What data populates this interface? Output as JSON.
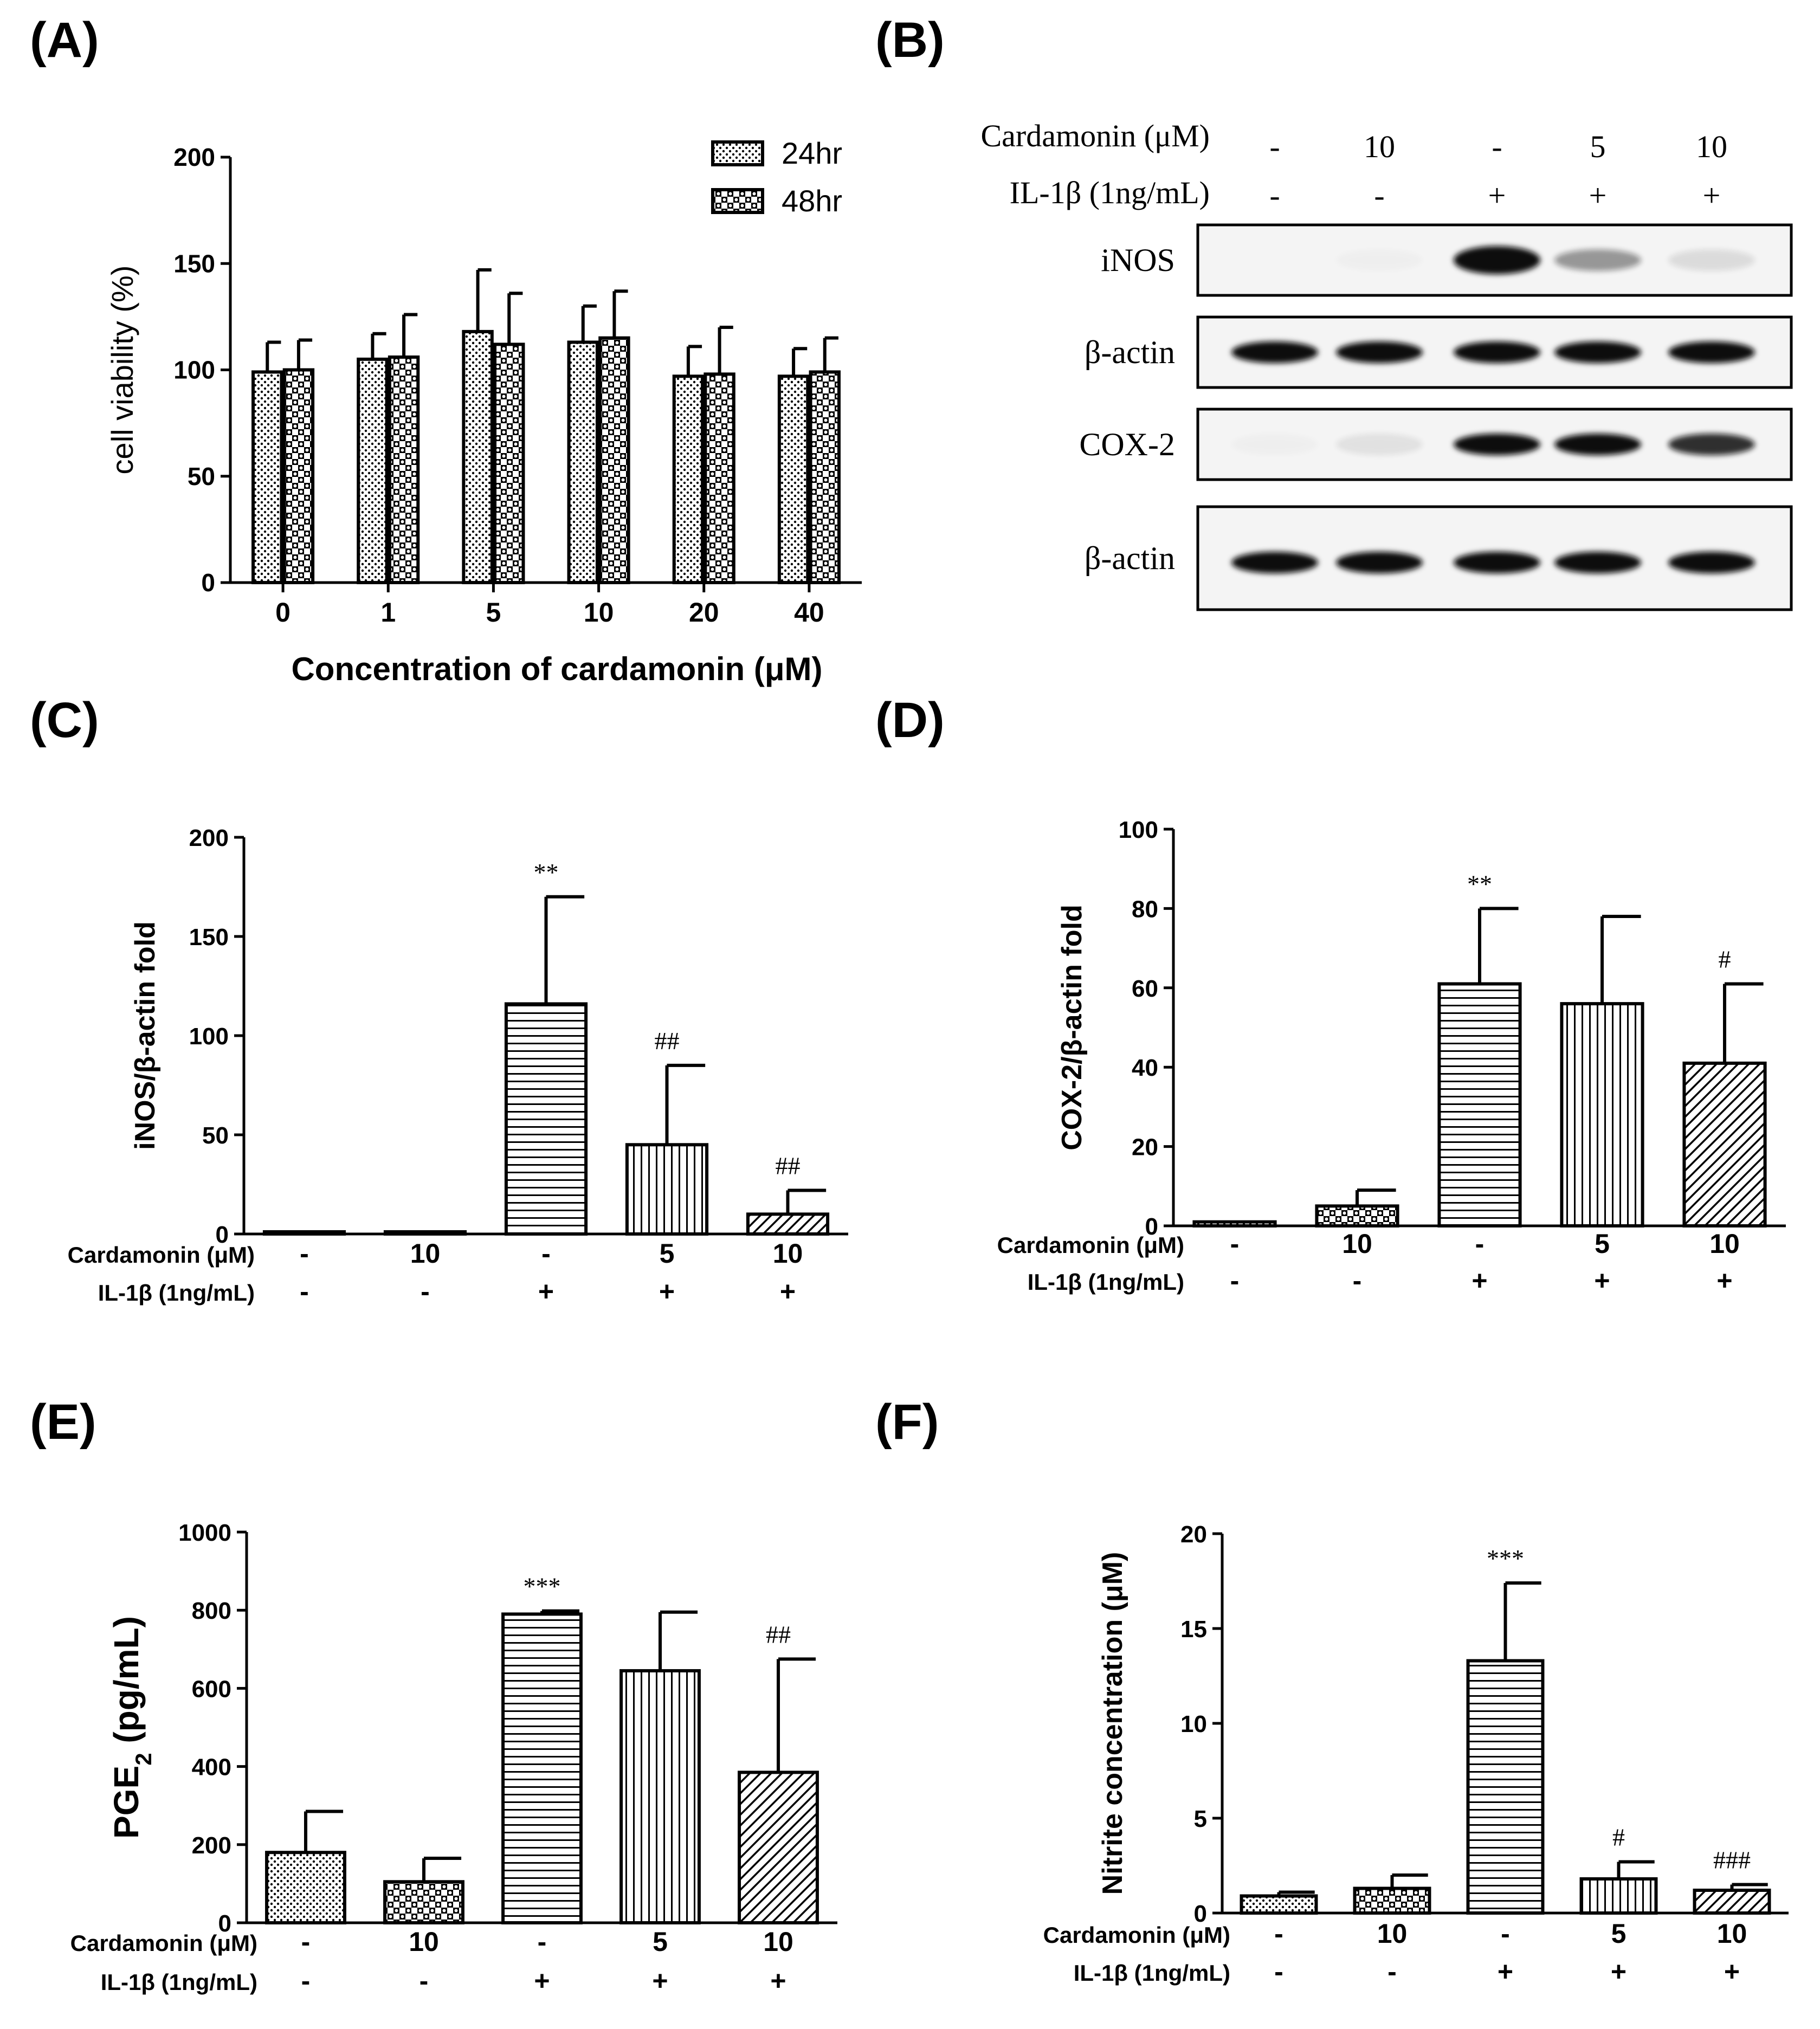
{
  "colors": {
    "ink": "#000000",
    "bar_fill": "#ffffff",
    "blot_bg": "#f4f4f4",
    "band": "#111111"
  },
  "chart_data": [
    {
      "panel": "A",
      "label": "(A)",
      "type": "bar",
      "xlabel": "Concentration of cardamonin (μM)",
      "ylabel": "cell viability (%)",
      "ylim": [
        0,
        200
      ],
      "yticks": [
        "0",
        "50",
        "100",
        "150",
        "200"
      ],
      "categories": [
        "0",
        "1",
        "5",
        "10",
        "20",
        "40"
      ],
      "series": [
        {
          "name": "24hr",
          "pattern": "dots",
          "values": [
            99,
            105,
            118,
            113,
            97,
            97
          ],
          "errors": [
            14,
            12,
            29,
            17,
            14,
            13
          ]
        },
        {
          "name": "48hr",
          "pattern": "checker",
          "values": [
            100,
            106,
            112,
            115,
            98,
            99
          ],
          "errors": [
            14,
            20,
            24,
            22,
            22,
            16
          ]
        }
      ],
      "legend_position": "top-right"
    },
    {
      "panel": "C",
      "label": "(C)",
      "type": "bar",
      "ylabel": "iNOS/β-actin fold",
      "ylim": [
        0,
        200
      ],
      "yticks": [
        "0",
        "50",
        "100",
        "150",
        "200"
      ],
      "row_labels": [
        "Cardamonin (μM)",
        "IL-1β (1ng/mL)"
      ],
      "cardamonin": [
        "-",
        "10",
        "-",
        "5",
        "10"
      ],
      "il1b": [
        "-",
        "-",
        "+",
        "+",
        "+"
      ],
      "patterns": [
        "dots",
        "checker",
        "hlines",
        "vlines",
        "diag"
      ],
      "values": [
        1,
        1,
        116,
        45,
        10
      ],
      "errors": [
        0,
        0,
        54,
        40,
        12
      ],
      "annotations": [
        "",
        "",
        "**",
        "##",
        "##"
      ]
    },
    {
      "panel": "D",
      "label": "(D)",
      "type": "bar",
      "ylabel": "COX-2/β-actin fold",
      "ylim": [
        0,
        100
      ],
      "yticks": [
        "0",
        "20",
        "40",
        "60",
        "80",
        "100"
      ],
      "row_labels": [
        "Cardamonin (μM)",
        "IL-1β (1ng/mL)"
      ],
      "cardamonin": [
        "-",
        "10",
        "-",
        "5",
        "10"
      ],
      "il1b": [
        "-",
        "-",
        "+",
        "+",
        "+"
      ],
      "patterns": [
        "dots",
        "checker",
        "hlines",
        "vlines",
        "diag"
      ],
      "values": [
        1,
        5,
        61,
        56,
        41
      ],
      "errors": [
        0,
        4,
        19,
        22,
        20
      ],
      "annotations": [
        "",
        "",
        "**",
        "",
        "#"
      ]
    },
    {
      "panel": "E",
      "label": "(E)",
      "type": "bar",
      "ylabel": "PGE",
      "ylabel_sub": "2",
      "ylabel_unit": " (pg/mL)",
      "ylim": [
        0,
        1000
      ],
      "yticks": [
        "0",
        "200",
        "400",
        "600",
        "800",
        "1000"
      ],
      "row_labels": [
        "Cardamonin (μM)",
        "IL-1β (1ng/mL)"
      ],
      "cardamonin": [
        "-",
        "10",
        "-",
        "5",
        "10"
      ],
      "il1b": [
        "-",
        "-",
        "+",
        "+",
        "+"
      ],
      "patterns": [
        "dots",
        "checker",
        "hlines",
        "vlines",
        "diag"
      ],
      "values": [
        180,
        105,
        790,
        645,
        385
      ],
      "errors": [
        105,
        60,
        8,
        150,
        290
      ],
      "annotations": [
        "",
        "",
        "***",
        "",
        "##"
      ]
    },
    {
      "panel": "F",
      "label": "(F)",
      "type": "bar",
      "ylabel": "Nitrite concentration (μM)",
      "ylim": [
        0,
        20
      ],
      "yticks": [
        "0",
        "5",
        "10",
        "15",
        "20"
      ],
      "row_labels": [
        "Cardamonin (μM)",
        "IL-1β (1ng/mL)"
      ],
      "cardamonin": [
        "-",
        "10",
        "-",
        "5",
        "10"
      ],
      "il1b": [
        "-",
        "-",
        "+",
        "+",
        "+"
      ],
      "patterns": [
        "dots",
        "checker",
        "hlines",
        "vlines",
        "diag"
      ],
      "values": [
        0.9,
        1.3,
        13.3,
        1.8,
        1.2
      ],
      "errors": [
        0.2,
        0.7,
        4.1,
        0.9,
        0.3
      ],
      "annotations": [
        "",
        "",
        "***",
        "#",
        "###"
      ]
    }
  ],
  "blot": {
    "label": "(B)",
    "row_labels": [
      "Cardamonin (μM)",
      "IL-1β (1ng/mL)"
    ],
    "cardamonin": [
      "-",
      "10",
      "-",
      "5",
      "10"
    ],
    "il1b": [
      "-",
      "-",
      "+",
      "+",
      "+"
    ],
    "rows": [
      {
        "name": "iNOS",
        "intensity": [
          0.0,
          0.02,
          1.0,
          0.4,
          0.1
        ]
      },
      {
        "name": "β-actin",
        "intensity": [
          1.0,
          1.0,
          1.0,
          1.0,
          1.0
        ]
      },
      {
        "name": "COX-2",
        "intensity": [
          0.02,
          0.08,
          1.0,
          1.0,
          0.85
        ]
      },
      {
        "name": "β-actin",
        "intensity": [
          1.0,
          1.0,
          1.0,
          1.0,
          1.0
        ]
      }
    ]
  }
}
